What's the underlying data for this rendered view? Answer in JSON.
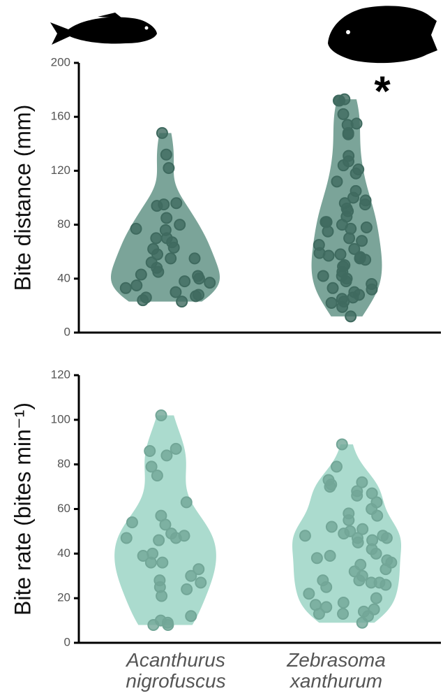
{
  "chart_data": [
    {
      "type": "violin",
      "y_label": "Bite distance (mm)",
      "ylim": [
        0,
        200
      ],
      "yticks": [
        0,
        40,
        80,
        120,
        160,
        200
      ],
      "color": "#4f8577",
      "annotation": "*",
      "series": [
        {
          "values": [
            148,
            122,
            132,
            95,
            94,
            96,
            80,
            76,
            85,
            70,
            77,
            67,
            63,
            58,
            55,
            52,
            45,
            43,
            37,
            38,
            40,
            42,
            33,
            30,
            28,
            26,
            23,
            24,
            27,
            35,
            62,
            55,
            70,
            48
          ]
        },
        {
          "values": [
            172,
            172,
            173,
            162,
            155,
            154,
            148,
            147,
            131,
            127,
            124,
            121,
            118,
            112,
            105,
            100,
            98,
            96,
            95,
            92,
            90,
            86,
            82,
            82,
            80,
            78,
            77,
            75,
            70,
            68,
            65,
            62,
            59,
            58,
            57,
            56,
            55,
            54,
            50,
            49,
            45,
            42,
            42,
            40,
            38,
            36,
            33,
            32,
            30,
            28,
            26,
            25,
            23,
            22,
            19,
            12
          ]
        }
      ]
    },
    {
      "type": "violin",
      "y_label": "Bite rate (bites min⁻¹)",
      "ylim": [
        0,
        120
      ],
      "yticks": [
        0,
        20,
        40,
        60,
        80,
        100,
        120
      ],
      "color": "#8fcfbd",
      "categories": [
        "Acanthurus nigrofuscus",
        "Zebrasoma xanthurum"
      ],
      "series": [
        {
          "values": [
            102,
            87,
            84,
            86,
            79,
            75,
            63,
            57,
            54,
            53,
            49,
            48,
            47,
            47,
            46,
            40,
            39,
            36,
            36,
            33,
            30,
            28,
            27,
            25,
            24,
            21,
            12,
            10,
            9,
            8,
            8
          ]
        },
        {
          "values": [
            89,
            79,
            73,
            72,
            71,
            70,
            68,
            67,
            66,
            63,
            60,
            58,
            57,
            55,
            52,
            51,
            50,
            49,
            48,
            48,
            47,
            47,
            46,
            45,
            42,
            40,
            39,
            38,
            37,
            36,
            35,
            33,
            32,
            30,
            28,
            28,
            27,
            27,
            26,
            25,
            22,
            20,
            18,
            17,
            16,
            15,
            14,
            13,
            13,
            12,
            9
          ]
        }
      ]
    }
  ]
}
